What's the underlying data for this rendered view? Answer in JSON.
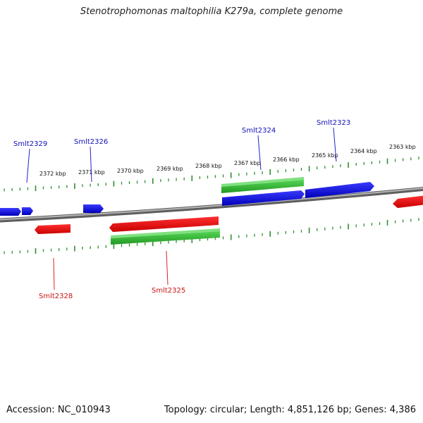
{
  "title": "Stenotrophomonas maltophilia K279a, complete genome",
  "footer": {
    "accession": "Accession: NC_010943",
    "summary": "Topology: circular; Length: 4,851,126 bp; Genes: 4,386"
  },
  "colors": {
    "forward": "#0000dd",
    "reverse": "#ee0000",
    "cds": "#33bb33",
    "tick": "#2f8f2f",
    "backbone": "#808080"
  },
  "ruler": {
    "labels": [
      "2363 kbp",
      "2364 kbp",
      "2365 kbp",
      "2366 kbp",
      "2367 kbp",
      "2368 kbp",
      "2369 kbp",
      "2370 kbp",
      "2371 kbp",
      "2372 kbp"
    ]
  },
  "genes": [
    {
      "name": "Smlt2329",
      "strand": "forward"
    },
    {
      "name": "Smlt2326",
      "strand": "forward"
    },
    {
      "name": "Smlt2324",
      "strand": "forward"
    },
    {
      "name": "Smlt2323",
      "strand": "forward"
    },
    {
      "name": "Smlt2328",
      "strand": "reverse"
    },
    {
      "name": "Smlt2325",
      "strand": "reverse"
    }
  ]
}
